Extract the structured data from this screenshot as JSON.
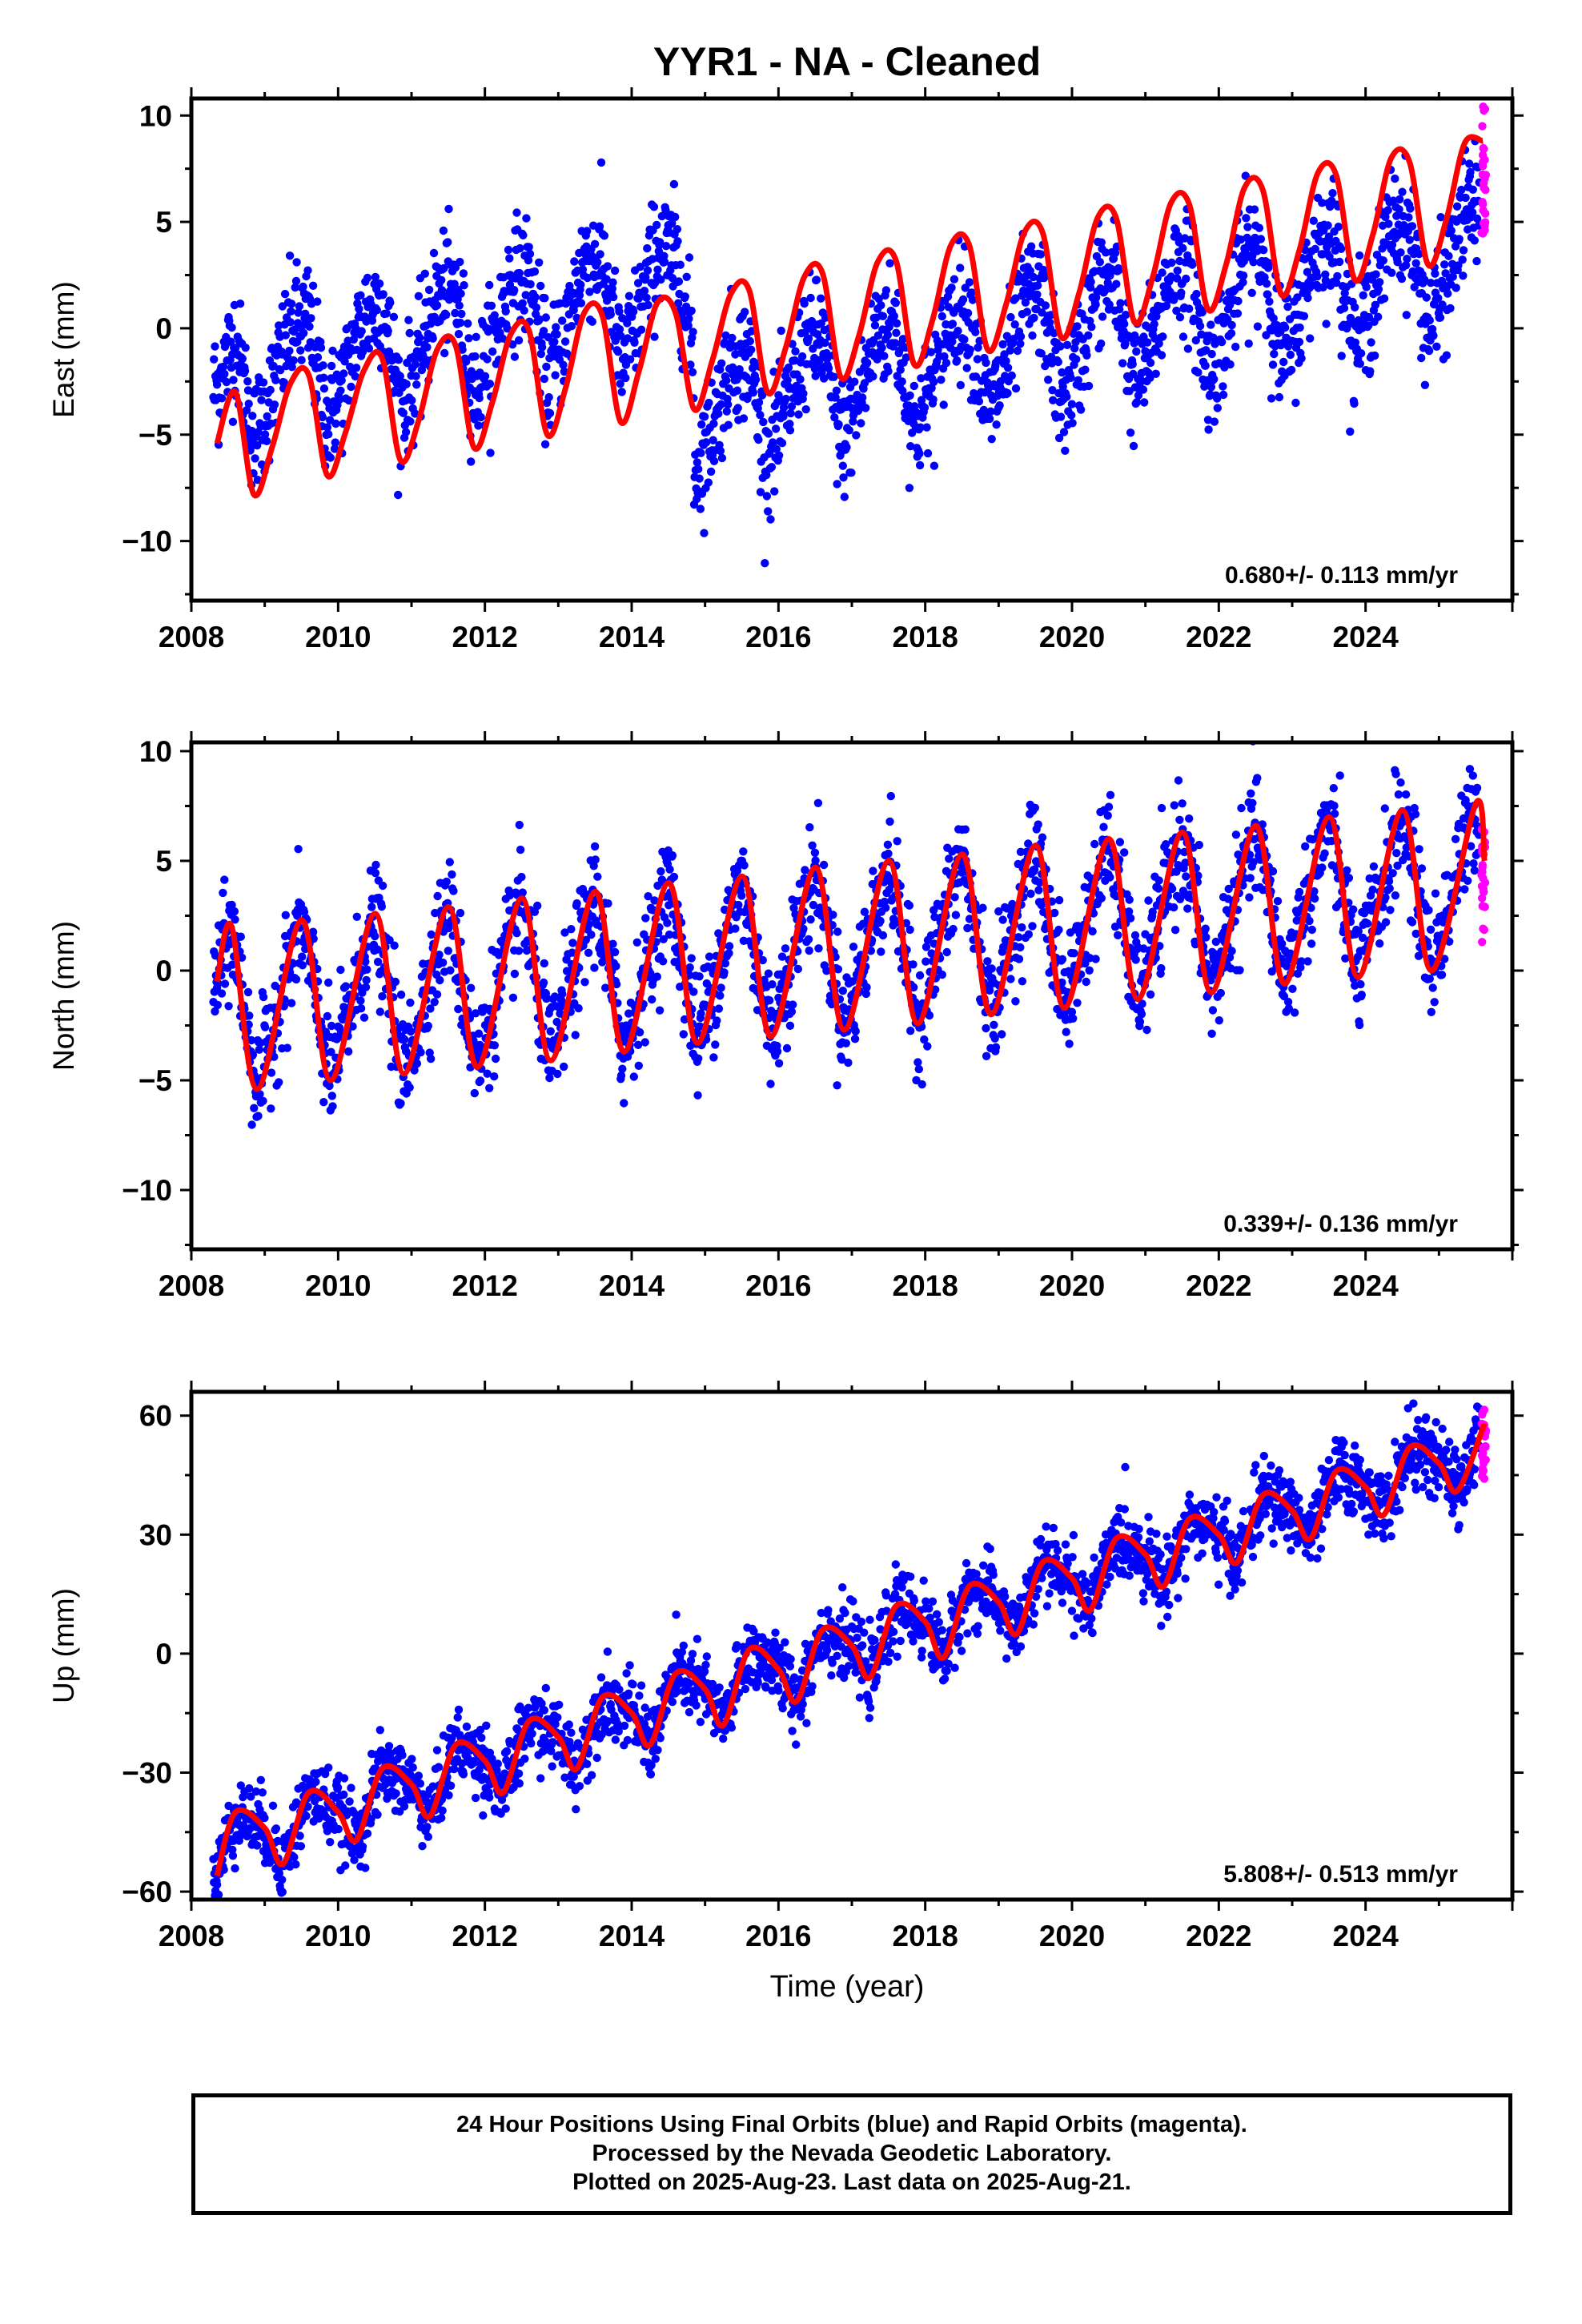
{
  "title": "YYR1  - NA - Cleaned",
  "xlabel": "Time (year)",
  "colors": {
    "final": "#0000ff",
    "rapid": "#ff00ff",
    "model": "#ff0000",
    "axis": "#000000"
  },
  "footer": {
    "line1": "24 Hour Positions Using Final Orbits (blue) and Rapid Orbits (magenta).",
    "line2": "Processed by the Nevada Geodetic Laboratory.",
    "line3": "Plotted on 2025-Aug-23. Last data on 2025-Aug-21."
  },
  "chart_data": [
    {
      "type": "scatter",
      "component": "east",
      "ylabel": "East (mm)",
      "rate_label": "0.680+/- 0.113 mm/yr",
      "xlim": [
        2008,
        2026
      ],
      "ylim": [
        -12.8,
        10.8
      ],
      "x_ticks": [
        2008,
        2010,
        2012,
        2014,
        2016,
        2018,
        2020,
        2022,
        2024
      ],
      "y_ticks": [
        -10,
        -5,
        0,
        5,
        10
      ],
      "model": {
        "x": [
          2008.35,
          2008.6,
          2008.85,
          2009.1,
          2009.35,
          2009.6,
          2009.85,
          2010.1,
          2010.35,
          2010.6,
          2010.85,
          2011.1,
          2011.35,
          2011.6,
          2011.85,
          2012.1,
          2012.35,
          2012.6,
          2012.85,
          2013.1,
          2013.35,
          2013.6,
          2013.85,
          2014.1,
          2014.35,
          2014.6,
          2014.85,
          2015.1,
          2015.35,
          2015.6,
          2015.85,
          2016.1,
          2016.35,
          2016.6,
          2016.85,
          2017.1,
          2017.35,
          2017.6,
          2017.85,
          2018.1,
          2018.35,
          2018.6,
          2018.85,
          2019.1,
          2019.35,
          2019.6,
          2019.85,
          2020.1,
          2020.35,
          2020.6,
          2020.85,
          2021.1,
          2021.35,
          2021.6,
          2021.85,
          2022.1,
          2022.35,
          2022.6,
          2022.85,
          2023.1,
          2023.35,
          2023.6,
          2023.85,
          2024.1,
          2024.35,
          2024.6,
          2024.85,
          2025.1,
          2025.35,
          2025.6
        ],
        "y": [
          -5.4,
          -3.0,
          -7.8,
          -5.6,
          -2.6,
          -2.2,
          -6.9,
          -4.9,
          -2.0,
          -1.4,
          -6.2,
          -4.3,
          -1.0,
          -0.8,
          -5.6,
          -3.5,
          -0.3,
          -0.1,
          -5.0,
          -2.8,
          0.7,
          0.6,
          -4.4,
          -2.0,
          1.2,
          0.7,
          -3.8,
          -1.5,
          1.6,
          1.8,
          -3.0,
          -0.9,
          2.4,
          2.6,
          -2.3,
          -0.3,
          3.1,
          3.2,
          -1.7,
          0.4,
          3.9,
          3.9,
          -1.0,
          1.1,
          4.5,
          4.5,
          -0.4,
          1.7,
          5.2,
          5.2,
          0.3,
          2.4,
          5.9,
          5.8,
          0.9,
          3.0,
          6.6,
          6.5,
          1.6,
          3.7,
          7.3,
          7.2,
          2.3,
          4.4,
          8.0,
          7.8,
          3.0,
          5.1,
          8.7,
          8.8
        ]
      },
      "final": {
        "x_start": 2008.3,
        "x_end": 2025.55,
        "trend": [
          -2.0,
          4.0
        ],
        "amplitude": 2.6,
        "noise": 1.4,
        "jump_year": 2014.85,
        "offset_before": 2.0,
        "offset_after": -3.3
      },
      "rapid": {
        "x_start": 2025.58,
        "x_end": 2025.64,
        "y_range": [
          4.2,
          10.7
        ]
      }
    },
    {
      "type": "scatter",
      "component": "north",
      "ylabel": "North (mm)",
      "rate_label": "0.339+/- 0.136 mm/yr",
      "xlim": [
        2008,
        2026
      ],
      "ylim": [
        -12.7,
        10.4
      ],
      "x_ticks": [
        2008,
        2010,
        2012,
        2014,
        2016,
        2018,
        2020,
        2022,
        2024
      ],
      "y_ticks": [
        -10,
        -5,
        0,
        5,
        10
      ],
      "model": {
        "x": [
          2008.35,
          2008.55,
          2008.9,
          2009.5,
          2009.9,
          2010.5,
          2010.9,
          2011.5,
          2011.9,
          2012.5,
          2012.9,
          2013.5,
          2013.9,
          2014.5,
          2014.9,
          2015.5,
          2015.9,
          2016.5,
          2016.9,
          2017.5,
          2017.9,
          2018.5,
          2018.9,
          2019.5,
          2019.9,
          2020.5,
          2020.9,
          2021.5,
          2021.9,
          2022.5,
          2022.9,
          2023.5,
          2023.9,
          2024.5,
          2024.9,
          2025.5,
          2025.62
        ],
        "y": [
          -0.5,
          2.0,
          -5.4,
          2.3,
          -5.0,
          2.6,
          -4.7,
          2.9,
          -4.4,
          3.3,
          -4.1,
          3.6,
          -3.7,
          4.0,
          -3.3,
          4.3,
          -3.0,
          4.7,
          -2.7,
          5.0,
          -2.4,
          5.3,
          -2.0,
          5.7,
          -1.7,
          6.0,
          -1.3,
          6.3,
          -1.0,
          6.6,
          -0.6,
          7.0,
          -0.3,
          7.3,
          0.0,
          7.6,
          5.0
        ]
      },
      "final": {
        "x_start": 2008.3,
        "x_end": 2025.55,
        "trend": [
          -1.7,
          3.7
        ],
        "amplitude": 3.7,
        "noise": 1.3
      },
      "rapid": {
        "x_start": 2025.58,
        "x_end": 2025.64,
        "y_range": [
          -0.3,
          6.8
        ]
      }
    },
    {
      "type": "scatter",
      "component": "up",
      "ylabel": "Up (mm)",
      "rate_label": "5.808+/- 0.513 mm/yr",
      "xlim": [
        2008,
        2026
      ],
      "ylim": [
        -62,
        66
      ],
      "x_ticks": [
        2008,
        2010,
        2012,
        2014,
        2016,
        2018,
        2020,
        2022,
        2024
      ],
      "y_ticks": [
        -60,
        -30,
        0,
        30,
        60
      ],
      "model": {
        "x": [
          2008.35,
          2008.6,
          2009.0,
          2009.25,
          2009.6,
          2010.0,
          2010.25,
          2010.6,
          2011.0,
          2011.25,
          2011.6,
          2012.0,
          2012.25,
          2012.6,
          2013.0,
          2013.25,
          2013.6,
          2014.0,
          2014.25,
          2014.6,
          2015.0,
          2015.25,
          2015.6,
          2016.0,
          2016.25,
          2016.6,
          2017.0,
          2017.25,
          2017.6,
          2018.0,
          2018.25,
          2018.6,
          2019.0,
          2019.25,
          2019.6,
          2020.0,
          2020.25,
          2020.6,
          2021.0,
          2021.25,
          2021.6,
          2022.0,
          2022.25,
          2022.6,
          2023.0,
          2023.25,
          2023.6,
          2024.0,
          2024.25,
          2024.6,
          2025.0,
          2025.25,
          2025.62
        ],
        "y": [
          -56,
          -40,
          -44,
          -53,
          -35,
          -40,
          -47,
          -29,
          -33,
          -41,
          -23,
          -27,
          -35,
          -17,
          -21,
          -29,
          -11,
          -15,
          -23,
          -5,
          -9,
          -18,
          1,
          -4,
          -12,
          6,
          2,
          -6,
          12,
          8,
          -1,
          17,
          13,
          5,
          23,
          19,
          11,
          29,
          25,
          17,
          34,
          30,
          23,
          40,
          36,
          29,
          46,
          42,
          35,
          52,
          48,
          41,
          58
        ]
      },
      "final": {
        "x_start": 2008.3,
        "x_end": 2025.55,
        "trend": [
          -48,
          47
        ],
        "amplitude": 5.0,
        "noise": 4.5
      },
      "rapid": {
        "x_start": 2025.58,
        "x_end": 2025.64,
        "y_range": [
          43,
          64
        ]
      }
    }
  ]
}
